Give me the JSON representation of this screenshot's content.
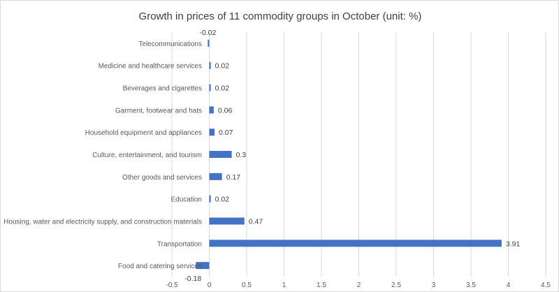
{
  "chart_data": {
    "type": "bar",
    "orientation": "horizontal",
    "title": "Growth in prices of 11 commodity groups in October (unit: %)",
    "xlabel": "",
    "ylabel": "",
    "categories": [
      "Telecommunications",
      "Medicine and healthcare services",
      "Beverages and cigarettes",
      "Garment, footwear and hats",
      "Household equipment and appliances",
      "Culture, entertainment, and tourism",
      "Other goods and services",
      "Education",
      "Housing, water and electricity supply, and construction materials",
      "Transportation",
      "Food and catering services"
    ],
    "values": [
      -0.02,
      0.02,
      0.02,
      0.06,
      0.07,
      0.3,
      0.17,
      0.02,
      0.47,
      3.91,
      -0.18
    ],
    "data_labels": [
      "-0.02",
      "0.02",
      "0.02",
      "0.06",
      "0.07",
      "0.3",
      "0.17",
      "0.02",
      "0.47",
      "3.91",
      "-0.18"
    ],
    "xlim": [
      -0.5,
      4.5
    ],
    "xticks": [
      "-0.5",
      "0",
      "0.5",
      "1",
      "1.5",
      "2",
      "2.5",
      "3",
      "3.5",
      "4",
      "4.5"
    ],
    "grid": true,
    "legend": "none",
    "bar_color": "#4472C4"
  }
}
